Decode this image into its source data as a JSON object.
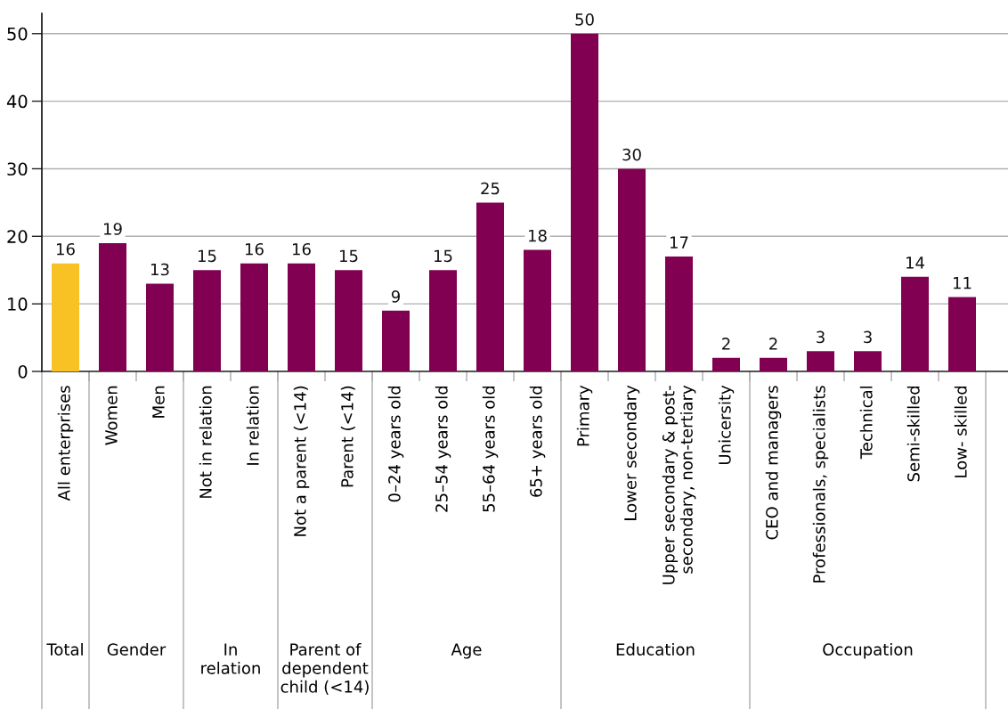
{
  "chart_data": {
    "type": "bar",
    "categories": [
      "All enterprises",
      "Women",
      "Men",
      "Not in relation",
      "In relation",
      "Not a parent (<14)",
      "Parent (<14)",
      "0–24 years old",
      "25–54 years old",
      "55–64 years old",
      "65+ years old",
      "Primary",
      "Lower secondary",
      "Upper secondary & post-\nsecondary, non-tertiary",
      "Unicersity",
      "CEO and managers",
      "Professionals, specialists",
      "Technical",
      "Semi-skilled",
      "Low- skilled"
    ],
    "values": [
      16,
      19,
      13,
      15,
      16,
      16,
      15,
      9,
      15,
      25,
      18,
      50,
      30,
      17,
      2,
      2,
      3,
      3,
      14,
      11
    ],
    "colors": [
      "#f8c225",
      "#820052",
      "#820052",
      "#820052",
      "#820052",
      "#820052",
      "#820052",
      "#820052",
      "#820052",
      "#820052",
      "#820052",
      "#820052",
      "#820052",
      "#820052",
      "#820052",
      "#820052",
      "#820052",
      "#820052",
      "#820052",
      "#820052"
    ],
    "ylim": [
      0,
      53
    ],
    "yticks": [
      0,
      10,
      20,
      30,
      40,
      50
    ],
    "grid": "y",
    "data_labels": true,
    "annotations": [
      "Total",
      "Gender",
      "In\nrelation",
      "Parent of\ndependent\nchild (<14)",
      "Age",
      "Education",
      "Occupation"
    ]
  }
}
